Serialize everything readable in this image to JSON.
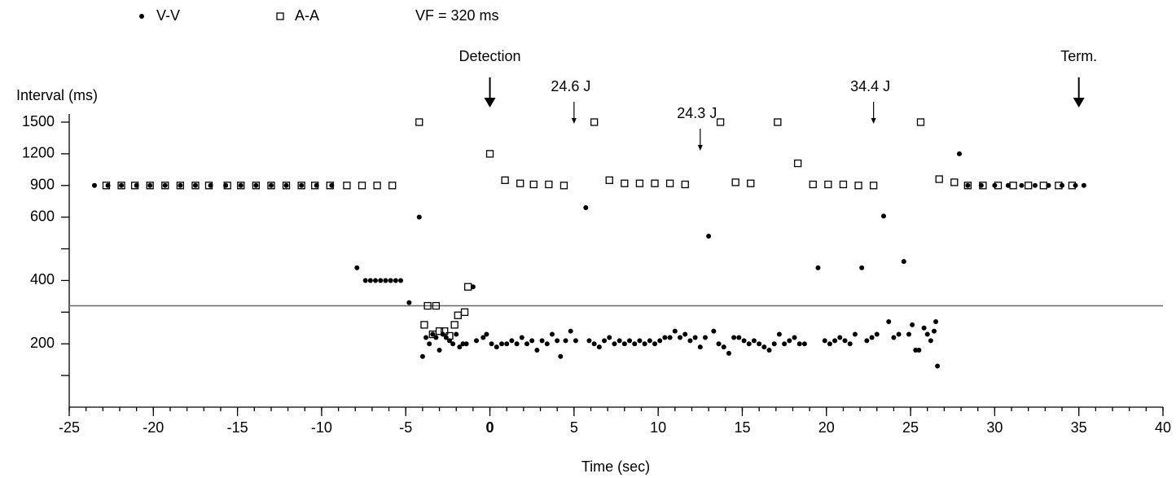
{
  "chart_data": {
    "type": "scatter",
    "y_label": "Interval (ms)",
    "x_label": "Time (sec)",
    "xlim": [
      -25,
      40
    ],
    "xticks": [
      -25,
      -20,
      -15,
      -10,
      -5,
      0,
      5,
      10,
      15,
      20,
      25,
      30,
      35,
      40
    ],
    "xminor_step": 1,
    "ylim": [
      0,
      1500
    ],
    "yticks": [
      200,
      400,
      600,
      900,
      1200,
      1500
    ],
    "yminor_ticks": [
      100,
      300,
      500
    ],
    "y_scale": "piecewise-even-ticks",
    "reference_line": {
      "value": 320,
      "label": "VF = 320 ms",
      "color": "#666666"
    },
    "annotations": [
      {
        "text": "Detection",
        "x": 0,
        "size": "large"
      },
      {
        "text": "24.6 J",
        "x": 5,
        "size": "small"
      },
      {
        "text": "24.3 J",
        "x": 12.5,
        "size": "small"
      },
      {
        "text": "34.4 J",
        "x": 22.8,
        "size": "small"
      },
      {
        "text": "Term.",
        "x": 35,
        "size": "large"
      }
    ],
    "series": [
      {
        "name": "V-V",
        "marker": "dot",
        "color": "#000000",
        "x": [
          -23.5,
          -22.7,
          -21.9,
          -21.0,
          -20.2,
          -19.3,
          -18.4,
          -17.5,
          -16.6,
          -15.7,
          -14.8,
          -13.9,
          -13.0,
          -12.1,
          -11.2,
          -10.3,
          -9.4,
          -7.9,
          -7.4,
          -7.1,
          -6.8,
          -6.5,
          -6.2,
          -5.9,
          -5.6,
          -5.3,
          -4.8,
          -4.2,
          -4.0,
          -3.8,
          -3.6,
          -3.4,
          -3.2,
          -3.0,
          -2.8,
          -2.6,
          -2.4,
          -2.2,
          -2.0,
          -1.8,
          -1.6,
          -1.4,
          -1.0,
          -0.8,
          -0.4,
          -0.2,
          0.1,
          0.4,
          0.7,
          1.0,
          1.3,
          1.6,
          1.9,
          2.2,
          2.5,
          2.8,
          3.1,
          3.4,
          3.7,
          4.0,
          4.2,
          4.5,
          4.8,
          5.1,
          5.7,
          5.9,
          6.2,
          6.5,
          6.8,
          7.1,
          7.4,
          7.7,
          8.0,
          8.3,
          8.6,
          8.9,
          9.2,
          9.5,
          9.8,
          10.1,
          10.4,
          10.7,
          11.0,
          11.3,
          11.6,
          11.9,
          12.2,
          12.5,
          12.8,
          13.0,
          13.3,
          13.6,
          13.9,
          14.2,
          14.5,
          14.8,
          15.1,
          15.4,
          15.7,
          16.0,
          16.3,
          16.6,
          16.9,
          17.2,
          17.5,
          17.8,
          18.1,
          18.4,
          18.7,
          19.5,
          19.9,
          20.2,
          20.5,
          20.8,
          21.1,
          21.4,
          21.7,
          22.1,
          22.4,
          22.7,
          23.0,
          23.4,
          23.7,
          24.0,
          24.3,
          24.6,
          24.9,
          25.1,
          25.3,
          25.5,
          25.8,
          26.0,
          26.2,
          26.4,
          26.5,
          26.6,
          27.9,
          28.4,
          29.2,
          30.0,
          30.8,
          31.6,
          32.4,
          33.2,
          34.0,
          34.8,
          35.3
        ],
        "values": [
          900,
          900,
          900,
          900,
          900,
          900,
          900,
          900,
          900,
          900,
          900,
          900,
          900,
          900,
          900,
          900,
          900,
          440,
          400,
          400,
          400,
          400,
          400,
          400,
          400,
          400,
          330,
          600,
          160,
          220,
          200,
          230,
          220,
          180,
          230,
          220,
          210,
          200,
          230,
          190,
          200,
          200,
          380,
          210,
          220,
          230,
          200,
          190,
          200,
          200,
          210,
          200,
          220,
          200,
          210,
          180,
          210,
          200,
          230,
          210,
          160,
          210,
          240,
          210,
          690,
          210,
          200,
          190,
          210,
          220,
          200,
          210,
          200,
          210,
          200,
          210,
          200,
          210,
          200,
          210,
          220,
          220,
          240,
          220,
          230,
          210,
          220,
          190,
          220,
          540,
          240,
          200,
          190,
          170,
          220,
          220,
          210,
          200,
          210,
          200,
          190,
          180,
          200,
          230,
          200,
          210,
          220,
          200,
          200,
          440,
          210,
          200,
          210,
          220,
          210,
          200,
          230,
          440,
          210,
          220,
          230,
          610,
          270,
          220,
          230,
          460,
          230,
          260,
          180,
          180,
          250,
          230,
          210,
          240,
          270,
          130,
          1200,
          900,
          900,
          900,
          900,
          900,
          900,
          900,
          900,
          900,
          900
        ]
      },
      {
        "name": "A-A",
        "marker": "square",
        "color": "#000000",
        "x": [
          -22.8,
          -21.9,
          -21.1,
          -20.2,
          -19.3,
          -18.4,
          -17.5,
          -16.7,
          -15.6,
          -14.8,
          -13.9,
          -13.0,
          -12.1,
          -11.2,
          -10.4,
          -9.5,
          -8.5,
          -7.6,
          -6.7,
          -5.8,
          -4.2,
          -3.9,
          -3.7,
          -3.2,
          -3.4,
          -3.0,
          -2.7,
          -2.4,
          -2.1,
          -1.9,
          -1.5,
          -1.3,
          0,
          0.9,
          1.8,
          2.6,
          3.5,
          4.4,
          6.2,
          7.1,
          8.0,
          8.9,
          9.8,
          10.7,
          11.6,
          13.7,
          14.6,
          15.5,
          17.1,
          18.3,
          19.2,
          20.1,
          21.0,
          21.9,
          22.8,
          25.6,
          26.7,
          27.6,
          28.4,
          29.3,
          30.2,
          31.1,
          32.0,
          32.9,
          33.8,
          34.6
        ],
        "values": [
          900,
          900,
          900,
          900,
          900,
          900,
          900,
          900,
          900,
          900,
          900,
          900,
          900,
          900,
          900,
          900,
          900,
          900,
          900,
          900,
          1500,
          260,
          320,
          320,
          230,
          240,
          240,
          225,
          260,
          290,
          300,
          380,
          1200,
          950,
          920,
          910,
          910,
          900,
          1500,
          950,
          920,
          920,
          920,
          920,
          910,
          1500,
          930,
          920,
          1500,
          1110,
          910,
          910,
          910,
          900,
          900,
          1500,
          960,
          930,
          900,
          900,
          900,
          900,
          900,
          900,
          900,
          900
        ]
      }
    ]
  }
}
